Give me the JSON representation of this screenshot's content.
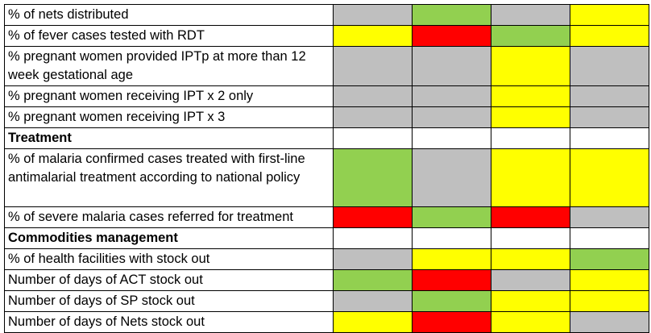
{
  "colors": {
    "gray": "#BFBFBF",
    "green": "#92D050",
    "yellow": "#FFFF00",
    "red": "#FF0000",
    "white": "#FFFFFF"
  },
  "rows": [
    {
      "label": "% of nets distributed",
      "lines": 1,
      "section": false,
      "cells": [
        "gray",
        "green",
        "gray",
        "yellow"
      ]
    },
    {
      "label": "% of fever cases tested with RDT",
      "lines": 1,
      "section": false,
      "cells": [
        "yellow",
        "red",
        "green",
        "yellow"
      ]
    },
    {
      "label": "% pregnant women provided IPTp at more than 12 week gestational age",
      "lines": 2,
      "section": false,
      "cells": [
        "gray",
        "gray",
        "yellow",
        "gray"
      ]
    },
    {
      "label": "% pregnant women receiving IPT x 2 only",
      "lines": 1,
      "section": false,
      "cells": [
        "gray",
        "gray",
        "yellow",
        "gray"
      ]
    },
    {
      "label": "% pregnant women receiving IPT x 3",
      "lines": 1,
      "section": false,
      "cells": [
        "gray",
        "gray",
        "yellow",
        "gray"
      ]
    },
    {
      "label": "Treatment",
      "lines": 1,
      "section": true,
      "cells": [
        "white",
        "white",
        "white",
        "white"
      ]
    },
    {
      "label": "% of malaria confirmed cases treated with first-line antimalarial treatment according to national policy",
      "lines": 3,
      "section": false,
      "cells": [
        "green",
        "gray",
        "yellow",
        "yellow"
      ]
    },
    {
      "label": "% of severe malaria cases referred for treatment",
      "lines": 1,
      "section": false,
      "cells": [
        "red",
        "green",
        "red",
        "gray"
      ]
    },
    {
      "label": "Commodities management",
      "lines": 1,
      "section": true,
      "cells": [
        "white",
        "white",
        "white",
        "white"
      ]
    },
    {
      "label": "% of health facilities with stock out",
      "lines": 1,
      "section": false,
      "cells": [
        "gray",
        "yellow",
        "yellow",
        "green"
      ]
    },
    {
      "label": "Number of days of ACT stock out",
      "lines": 1,
      "section": false,
      "cells": [
        "green",
        "red",
        "gray",
        "yellow"
      ]
    },
    {
      "label": "Number of days of SP stock out",
      "lines": 1,
      "section": false,
      "cells": [
        "gray",
        "green",
        "yellow",
        "yellow"
      ]
    },
    {
      "label": "Number of days of Nets stock out",
      "lines": 1,
      "section": false,
      "cells": [
        "yellow",
        "red",
        "yellow",
        "gray"
      ]
    }
  ]
}
